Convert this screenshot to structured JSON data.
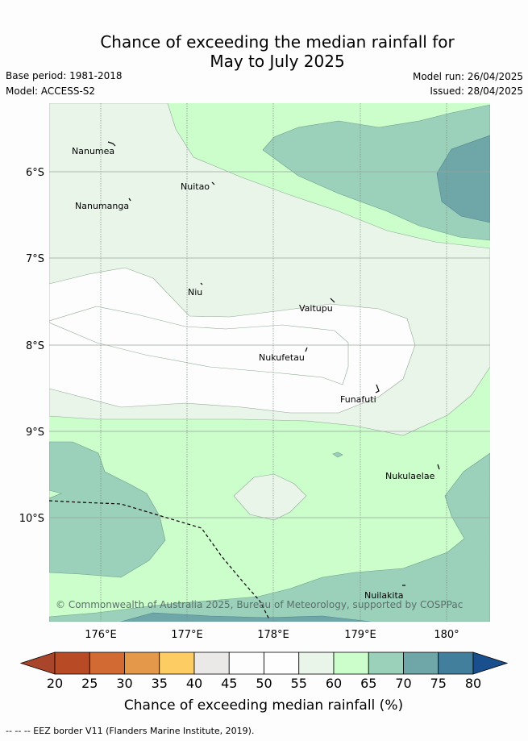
{
  "title_line1": "Chance of exceeding the median rainfall for",
  "title_line2": "May to July 2025",
  "base_period": "Base period: 1981-2018",
  "model": "Model: ACCESS-S2",
  "model_run": "Model run: 26/04/2025",
  "issued": "Issued: 28/04/2025",
  "lon_labels": [
    "176°E",
    "177°E",
    "178°E",
    "179°E",
    "180°"
  ],
  "lat_labels": [
    "6°S",
    "7°S",
    "8°S",
    "9°S",
    "10°S"
  ],
  "places": [
    {
      "name": "Nanumea"
    },
    {
      "name": "Nuitao"
    },
    {
      "name": "Nanumanga"
    },
    {
      "name": "Niu"
    },
    {
      "name": "Vaitupu"
    },
    {
      "name": "Nukufetau"
    },
    {
      "name": "Funafuti"
    },
    {
      "name": "Nukulaelae"
    },
    {
      "name": "Nuilakita"
    }
  ],
  "credit": "© Commonwealth of Australia 2025, Bureau of Meteorology, supported by COSPPac",
  "colorbar": {
    "ticks": [
      "20",
      "25",
      "30",
      "35",
      "40",
      "45",
      "50",
      "55",
      "60",
      "65",
      "70",
      "75",
      "80"
    ],
    "label": "Chance of exceeding median rainfall (%)",
    "colors": [
      "#a8452a",
      "#b84a26",
      "#d26a34",
      "#e4984a",
      "#fdcc63",
      "#ebe8e8",
      "#fcfdfc",
      "#fdfefd",
      "#eaf5ea",
      "#cbfecb",
      "#9bd0ba",
      "#6fa6a8",
      "#427f9d",
      "#1a4f8e"
    ]
  },
  "legend_text": "-- -- -- EEZ border V11 (Flanders Marine Institute, 2019)."
}
